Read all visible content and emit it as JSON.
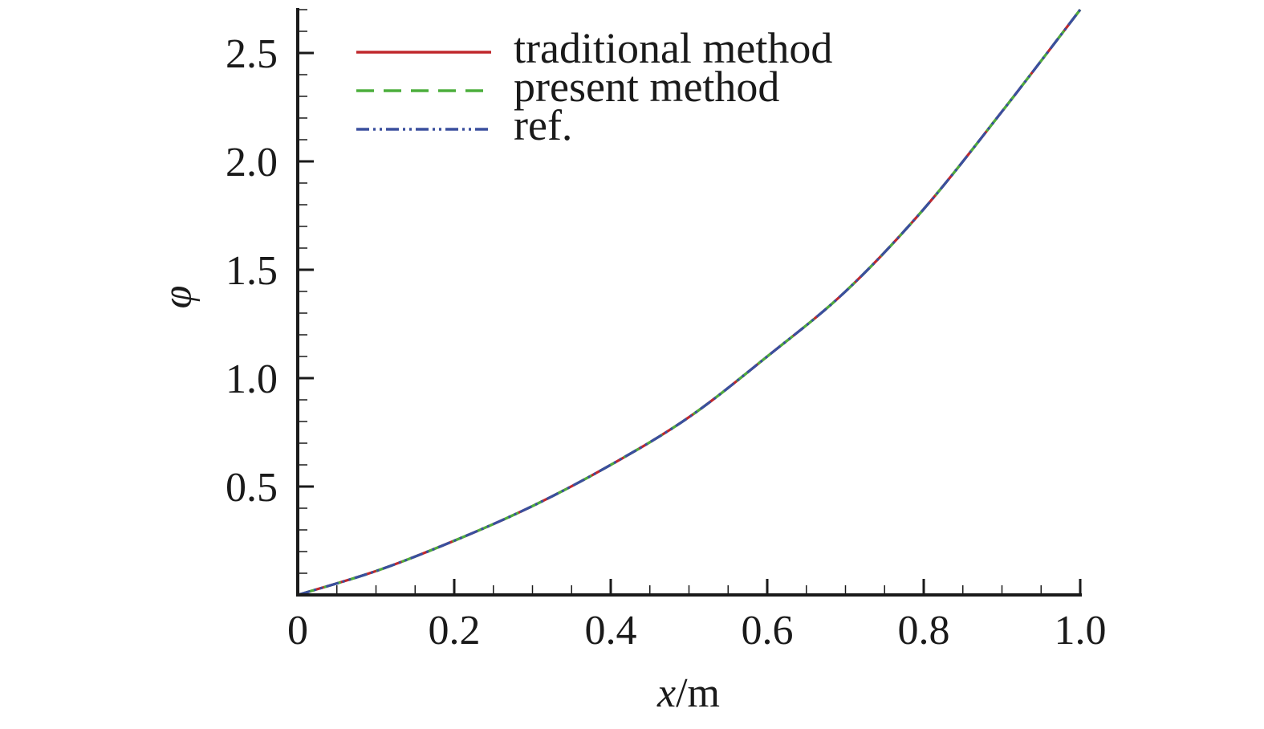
{
  "chart_data": {
    "type": "line",
    "xlabel": {
      "var": "x",
      "unit": "/m"
    },
    "ylabel": "φ",
    "xlim": [
      0,
      1.0
    ],
    "ylim": [
      0,
      2.7
    ],
    "x_ticks": [
      {
        "value": 0,
        "label": "0"
      },
      {
        "value": 0.2,
        "label": "0.2"
      },
      {
        "value": 0.4,
        "label": "0.4"
      },
      {
        "value": 0.6,
        "label": "0.6"
      },
      {
        "value": 0.8,
        "label": "0.8"
      },
      {
        "value": 1.0,
        "label": "1.0"
      }
    ],
    "y_ticks": [
      {
        "value": 0.5,
        "label": "0.5"
      },
      {
        "value": 1.0,
        "label": "1.0"
      },
      {
        "value": 1.5,
        "label": "1.5"
      },
      {
        "value": 2.0,
        "label": "2.0"
      },
      {
        "value": 2.5,
        "label": "2.5"
      }
    ],
    "x_minor_step": 0.05,
    "y_minor_step": 0.1,
    "grid": false,
    "legend_position": "top-left",
    "x": [
      0,
      0.1,
      0.2,
      0.3,
      0.4,
      0.5,
      0.6,
      0.7,
      0.8,
      0.9,
      1.0
    ],
    "series": [
      {
        "name": "traditional method",
        "color": "#c0282d",
        "style": "solid",
        "values": [
          0,
          0.11,
          0.25,
          0.41,
          0.6,
          0.82,
          1.1,
          1.4,
          1.78,
          2.23,
          2.7
        ]
      },
      {
        "name": "present method",
        "color": "#4cae3c",
        "style": "dashed",
        "values": [
          0,
          0.11,
          0.25,
          0.41,
          0.6,
          0.82,
          1.1,
          1.4,
          1.78,
          2.23,
          2.7
        ]
      },
      {
        "name": "ref.",
        "color": "#3a4f9e",
        "style": "dash-dot-dot",
        "values": [
          0,
          0.11,
          0.25,
          0.41,
          0.6,
          0.82,
          1.1,
          1.4,
          1.78,
          2.23,
          2.7
        ]
      }
    ]
  }
}
